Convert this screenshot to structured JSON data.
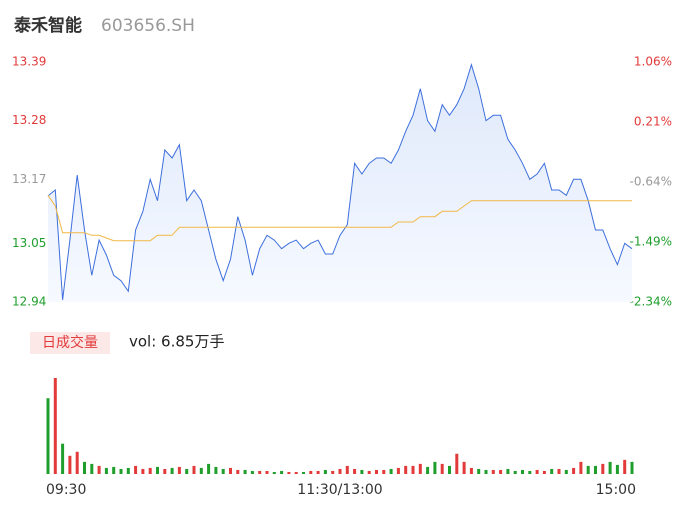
{
  "chart_data": {
    "type": "line",
    "title": "泰禾智能",
    "subtitle": "603656.SH",
    "x": [
      0,
      3,
      6,
      9,
      12,
      15,
      18,
      21,
      24,
      27,
      30,
      33,
      36,
      39,
      42,
      45,
      48,
      51,
      54,
      57,
      60,
      63,
      66,
      69,
      72,
      75,
      78,
      81,
      84,
      87,
      90,
      93,
      96,
      99,
      102,
      105,
      108,
      111,
      114,
      117,
      120,
      123,
      126,
      129,
      132,
      135,
      138,
      141,
      144,
      147,
      150,
      153,
      156,
      159,
      162,
      165,
      168,
      171,
      174,
      177,
      180,
      183,
      186,
      189,
      192,
      195,
      198,
      201,
      204,
      207,
      210,
      213,
      216,
      219,
      222,
      225,
      228,
      231,
      234,
      237,
      240
    ],
    "xlim": [
      0,
      240
    ],
    "xticks": [
      {
        "value": 0,
        "label": "09:30"
      },
      {
        "value": 120,
        "label": "11:30/13:00"
      },
      {
        "value": 240,
        "label": "15:00"
      }
    ],
    "ylim": [
      12.94,
      13.39
    ],
    "yticks": [
      13.39,
      13.28,
      13.17,
      13.05,
      12.94
    ],
    "y2lim": [
      -2.34,
      1.06
    ],
    "y2ticks": [
      {
        "value": 1.06,
        "label": "1.06%"
      },
      {
        "value": 0.21,
        "label": "0.21%"
      },
      {
        "value": -0.64,
        "label": "-0.64%"
      },
      {
        "value": -1.49,
        "label": "-1.49%"
      },
      {
        "value": -2.34,
        "label": "-2.34%"
      }
    ],
    "series": [
      {
        "color": "#3d6fdc",
        "values": [
          13.139,
          13.15,
          12.944,
          13.056,
          13.178,
          13.075,
          12.99,
          13.056,
          13.028,
          12.99,
          12.98,
          12.96,
          13.075,
          13.11,
          13.17,
          13.13,
          13.225,
          13.21,
          13.235,
          13.13,
          13.15,
          13.13,
          13.075,
          13.02,
          12.98,
          13.02,
          13.1,
          13.056,
          12.99,
          13.04,
          13.065,
          13.056,
          13.04,
          13.05,
          13.056,
          13.04,
          13.05,
          13.056,
          13.03,
          13.03,
          13.065,
          13.085,
          13.2,
          13.18,
          13.2,
          13.21,
          13.21,
          13.2,
          13.225,
          13.26,
          13.29,
          13.34,
          13.28,
          13.26,
          13.31,
          13.29,
          13.31,
          13.34,
          13.385,
          13.34,
          13.28,
          13.29,
          13.29,
          13.245,
          13.225,
          13.2,
          13.17,
          13.18,
          13.2,
          13.15,
          13.15,
          13.14,
          13.17,
          13.17,
          13.13,
          13.075,
          13.075,
          13.04,
          13.01,
          13.05,
          13.04
        ]
      },
      {
        "color": "#f2b846",
        "values": [
          13.14,
          13.12,
          13.07,
          13.07,
          13.07,
          13.07,
          13.065,
          13.065,
          13.06,
          13.055,
          13.055,
          13.055,
          13.055,
          13.055,
          13.055,
          13.065,
          13.065,
          13.065,
          13.08,
          13.08,
          13.08,
          13.08,
          13.08,
          13.08,
          13.08,
          13.08,
          13.08,
          13.08,
          13.08,
          13.08,
          13.08,
          13.08,
          13.08,
          13.08,
          13.08,
          13.08,
          13.08,
          13.08,
          13.08,
          13.08,
          13.08,
          13.08,
          13.08,
          13.08,
          13.08,
          13.08,
          13.08,
          13.08,
          13.09,
          13.09,
          13.09,
          13.1,
          13.1,
          13.1,
          13.11,
          13.11,
          13.11,
          13.12,
          13.13,
          13.13,
          13.13,
          13.13,
          13.13,
          13.13,
          13.13,
          13.13,
          13.13,
          13.13,
          13.13,
          13.13,
          13.13,
          13.13,
          13.13,
          13.13,
          13.13,
          13.13,
          13.13,
          13.13,
          13.13,
          13.13,
          13.13
        ]
      }
    ],
    "volume": {
      "label": "日成交量",
      "text": "vol: 6.85万手",
      "up_color": "#e23a3a",
      "down_color": "#1f9e2c",
      "values": [
        75,
        95,
        30,
        18,
        22,
        12,
        10,
        8,
        6,
        7,
        5,
        6,
        8,
        5,
        6,
        7,
        5,
        6,
        7,
        5,
        8,
        6,
        10,
        7,
        5,
        6,
        4,
        4,
        3,
        3,
        3,
        2,
        3,
        2,
        2,
        2,
        3,
        3,
        4,
        3,
        5,
        8,
        5,
        4,
        3,
        4,
        4,
        5,
        6,
        8,
        8,
        10,
        7,
        12,
        10,
        8,
        20,
        12,
        6,
        5,
        4,
        4,
        4,
        5,
        3,
        4,
        3,
        4,
        3,
        5,
        5,
        4,
        6,
        12,
        8,
        8,
        10,
        12,
        9,
        14,
        12
      ]
    }
  }
}
